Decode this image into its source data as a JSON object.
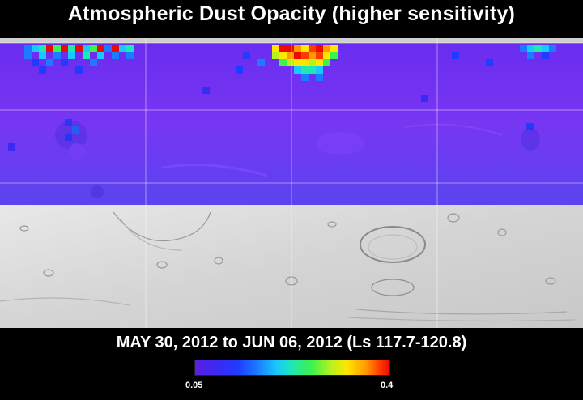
{
  "title": "Atmospheric Dust Opacity (higher sensitivity)",
  "date_range": "MAY 30, 2012 to JUN 06, 2012 (Ls 117.7-120.8)",
  "colorbar": {
    "min_label": "0.05",
    "max_label": "0.4",
    "colors": [
      "#5a1ee0",
      "#1f3cff",
      "#19c8ff",
      "#3ef24a",
      "#ffe600",
      "#ff9a00",
      "#e80d00"
    ]
  },
  "map": {
    "base_color": "#6a2cf0",
    "surface_color": "#dcdcdc",
    "dust_patches": [
      {
        "region": "northwest",
        "level": 0.22
      },
      {
        "region": "north-central",
        "level": 0.4
      },
      {
        "region": "northeast",
        "level": 0.15
      }
    ]
  }
}
